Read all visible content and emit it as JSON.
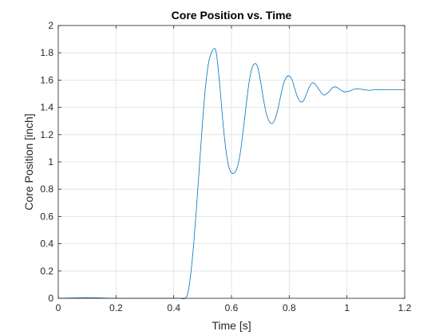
{
  "chart_data": {
    "type": "line",
    "title": "Core Position vs. Time",
    "xlabel": "Time [s]",
    "ylabel": "Core Position [inch]",
    "xlim": [
      0,
      1.2
    ],
    "ylim": [
      0,
      2
    ],
    "grid": true,
    "xticks": [
      "0",
      "0.2",
      "0.4",
      "0.6",
      "0.8",
      "1",
      "1.2"
    ],
    "yticks": [
      "0",
      "0.2",
      "0.4",
      "0.6",
      "0.8",
      "1",
      "1.2",
      "1.4",
      "1.6",
      "1.8",
      "2"
    ],
    "series": [
      {
        "color": "#0072BD",
        "x": [
          0,
          0.05,
          0.1,
          0.15,
          0.2,
          0.25,
          0.3,
          0.35,
          0.4,
          0.42,
          0.44,
          0.45,
          0.46,
          0.47,
          0.48,
          0.49,
          0.5,
          0.51,
          0.52,
          0.53,
          0.54,
          0.545,
          0.55,
          0.56,
          0.57,
          0.58,
          0.59,
          0.6,
          0.61,
          0.62,
          0.63,
          0.64,
          0.65,
          0.66,
          0.67,
          0.68,
          0.69,
          0.7,
          0.71,
          0.72,
          0.73,
          0.74,
          0.75,
          0.76,
          0.77,
          0.78,
          0.79,
          0.8,
          0.81,
          0.82,
          0.83,
          0.84,
          0.85,
          0.86,
          0.87,
          0.88,
          0.89,
          0.9,
          0.91,
          0.92,
          0.93,
          0.94,
          0.95,
          0.96,
          0.97,
          0.98,
          0.99,
          1.0,
          1.01,
          1.02,
          1.03,
          1.04,
          1.06,
          1.08,
          1.1,
          1.15,
          1.2
        ],
        "y": [
          0,
          0.003,
          0.005,
          0.003,
          0.0,
          0.0,
          0.0,
          0.0,
          0.0,
          0.0,
          0.0,
          0.05,
          0.2,
          0.42,
          0.7,
          1.0,
          1.3,
          1.55,
          1.72,
          1.8,
          1.83,
          1.82,
          1.76,
          1.55,
          1.3,
          1.1,
          0.97,
          0.92,
          0.92,
          0.96,
          1.06,
          1.22,
          1.4,
          1.57,
          1.68,
          1.72,
          1.7,
          1.6,
          1.47,
          1.36,
          1.3,
          1.28,
          1.31,
          1.38,
          1.48,
          1.57,
          1.62,
          1.63,
          1.6,
          1.53,
          1.47,
          1.44,
          1.45,
          1.5,
          1.55,
          1.58,
          1.57,
          1.54,
          1.51,
          1.49,
          1.5,
          1.52,
          1.545,
          1.55,
          1.54,
          1.525,
          1.515,
          1.515,
          1.52,
          1.53,
          1.535,
          1.535,
          1.53,
          1.525,
          1.53,
          1.53,
          1.53
        ]
      }
    ]
  }
}
